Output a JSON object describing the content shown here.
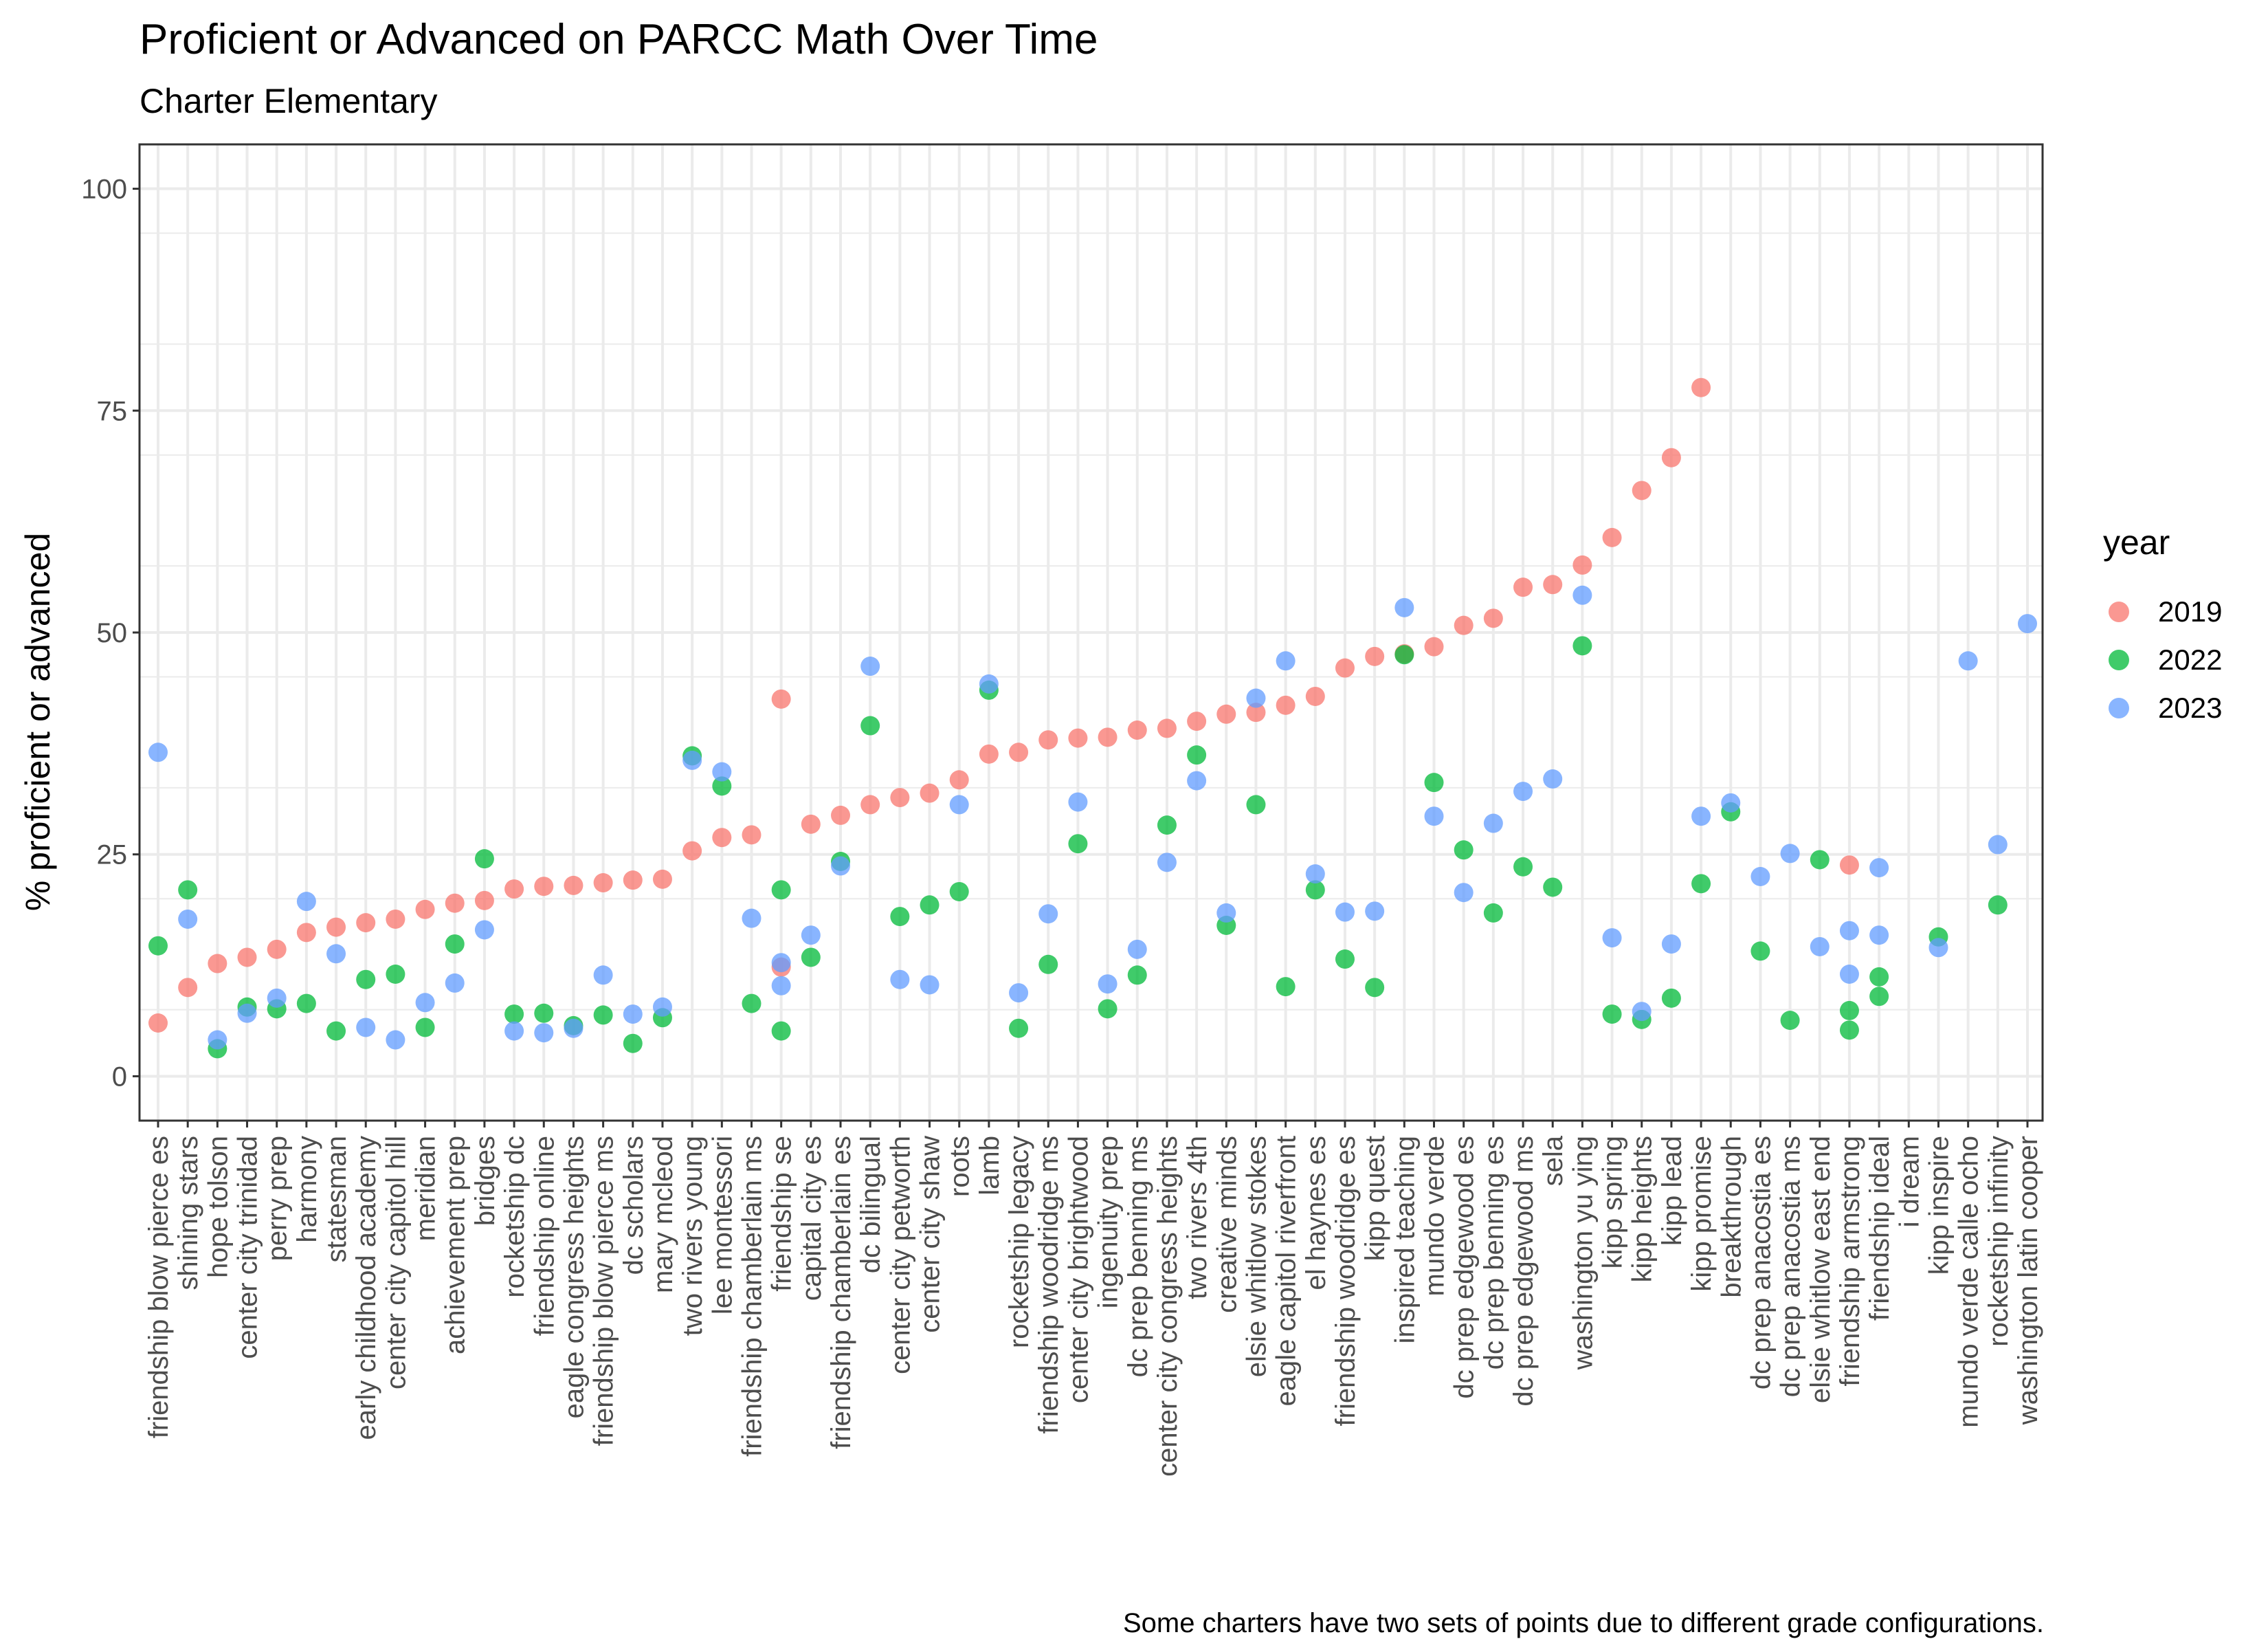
{
  "title": "Proficient or Advanced on PARCC Math Over Time",
  "subtitle": "Charter Elementary",
  "caption": "Some charters have two sets of points due to different grade configurations.",
  "colors": {
    "2019": "#F8766D",
    "2022": "#00BA38",
    "2023": "#619CFF",
    "grid": "#EBEBEB",
    "panel_border": "#333333"
  },
  "chart_data": {
    "type": "scatter",
    "title": "Proficient or Advanced on PARCC Math Over Time",
    "subtitle": "Charter Elementary",
    "xlabel": "",
    "ylabel": "% proficient or advanced",
    "ylim": [
      -5,
      105
    ],
    "yticks": [
      0,
      25,
      50,
      75,
      100
    ],
    "grid": true,
    "legend": {
      "title": "year",
      "position": "right",
      "entries": [
        "2019",
        "2022",
        "2023"
      ]
    },
    "categories": [
      "friendship blow pierce es",
      "shining stars",
      "hope tolson",
      "center city trinidad",
      "perry prep",
      "harmony",
      "statesman",
      "early childhood academy",
      "center city capitol hill",
      "meridian",
      "achievement prep",
      "bridges",
      "rocketship dc",
      "friendship online",
      "eagle congress heights",
      "friendship blow pierce ms",
      "dc scholars",
      "mary mcleod",
      "two rivers young",
      "lee montessori",
      "friendship chamberlain ms",
      "friendship se",
      "capital city es",
      "friendship chamberlain es",
      "dc bilingual",
      "center city petworth",
      "center city shaw",
      "roots",
      "lamb",
      "rocketship legacy",
      "friendship woodridge ms",
      "center city brightwood",
      "ingenuity prep",
      "dc prep benning ms",
      "center city congress heights",
      "two rivers 4th",
      "creative minds",
      "elsie whitlow stokes",
      "eagle capitol riverfront",
      "el haynes es",
      "friendship woodridge es",
      "kipp quest",
      "inspired teaching",
      "mundo verde",
      "dc prep edgewood es",
      "dc prep benning es",
      "dc prep edgewood ms",
      "sela",
      "washington yu ying",
      "kipp spring",
      "kipp heights",
      "kipp lead",
      "kipp promise",
      "breakthrough",
      "dc prep anacostia es",
      "dc prep anacostia ms",
      "elsie whitlow east end",
      "friendship armstrong",
      "friendship ideal",
      "i dream",
      "kipp inspire",
      "mundo verde calle ocho",
      "rocketship infinity",
      "washington latin cooper"
    ],
    "series": [
      {
        "name": "2019",
        "points": [
          [
            "friendship blow pierce es",
            6
          ],
          [
            "shining stars",
            10
          ],
          [
            "hope tolson",
            12.7
          ],
          [
            "center city trinidad",
            13.4
          ],
          [
            "perry prep",
            14.3
          ],
          [
            "harmony",
            16.2
          ],
          [
            "statesman",
            16.8
          ],
          [
            "early childhood academy",
            17.3
          ],
          [
            "center city capitol hill",
            17.7
          ],
          [
            "meridian",
            18.8
          ],
          [
            "achievement prep",
            19.5
          ],
          [
            "bridges",
            19.8
          ],
          [
            "rocketship dc",
            21.1
          ],
          [
            "friendship online",
            21.4
          ],
          [
            "eagle congress heights",
            21.5
          ],
          [
            "friendship blow pierce ms",
            21.8
          ],
          [
            "dc scholars",
            22.1
          ],
          [
            "mary mcleod",
            22.2
          ],
          [
            "two rivers young",
            25.4
          ],
          [
            "lee montessori",
            26.9
          ],
          [
            "friendship chamberlain ms",
            27.2
          ],
          [
            "friendship se",
            42.5
          ],
          [
            "friendship se",
            12.3
          ],
          [
            "capital city es",
            28.4
          ],
          [
            "friendship chamberlain es",
            29.4
          ],
          [
            "dc bilingual",
            30.6
          ],
          [
            "center city petworth",
            31.4
          ],
          [
            "center city shaw",
            31.9
          ],
          [
            "roots",
            33.4
          ],
          [
            "lamb",
            36.3
          ],
          [
            "rocketship legacy",
            36.5
          ],
          [
            "friendship woodridge ms",
            37.9
          ],
          [
            "center city brightwood",
            38.1
          ],
          [
            "ingenuity prep",
            38.2
          ],
          [
            "dc prep benning ms",
            39
          ],
          [
            "center city congress heights",
            39.2
          ],
          [
            "two rivers 4th",
            40
          ],
          [
            "creative minds",
            40.8
          ],
          [
            "elsie whitlow stokes",
            41
          ],
          [
            "eagle capitol riverfront",
            41.8
          ],
          [
            "el haynes es",
            42.8
          ],
          [
            "friendship woodridge es",
            46
          ],
          [
            "kipp quest",
            47.3
          ],
          [
            "inspired teaching",
            47.6
          ],
          [
            "mundo verde",
            48.4
          ],
          [
            "dc prep edgewood es",
            50.8
          ],
          [
            "dc prep benning es",
            51.6
          ],
          [
            "dc prep edgewood ms",
            55.1
          ],
          [
            "sela",
            55.4
          ],
          [
            "washington yu ying",
            57.6
          ],
          [
            "kipp spring",
            60.7
          ],
          [
            "kipp heights",
            66
          ],
          [
            "kipp lead",
            69.7
          ],
          [
            "kipp promise",
            77.6
          ],
          [
            "friendship armstrong",
            23.8
          ]
        ]
      },
      {
        "name": "2022",
        "points": [
          [
            "friendship blow pierce es",
            14.7
          ],
          [
            "shining stars",
            21
          ],
          [
            "hope tolson",
            3.1
          ],
          [
            "center city trinidad",
            7.8
          ],
          [
            "perry prep",
            7.6
          ],
          [
            "harmony",
            8.2
          ],
          [
            "statesman",
            5.1
          ],
          [
            "early childhood academy",
            10.9
          ],
          [
            "center city capitol hill",
            11.5
          ],
          [
            "meridian",
            5.5
          ],
          [
            "achievement prep",
            14.9
          ],
          [
            "bridges",
            24.5
          ],
          [
            "rocketship dc",
            7
          ],
          [
            "friendship online",
            7.1
          ],
          [
            "eagle congress heights",
            5.7
          ],
          [
            "friendship blow pierce ms",
            6.9
          ],
          [
            "dc scholars",
            3.7
          ],
          [
            "mary mcleod",
            6.6
          ],
          [
            "two rivers young",
            36.1
          ],
          [
            "lee montessori",
            32.7
          ],
          [
            "friendship chamberlain ms",
            8.2
          ],
          [
            "friendship se",
            21
          ],
          [
            "friendship se",
            5.1
          ],
          [
            "capital city es",
            13.4
          ],
          [
            "friendship chamberlain es",
            24.2
          ],
          [
            "dc bilingual",
            39.5
          ],
          [
            "center city petworth",
            18
          ],
          [
            "center city shaw",
            19.3
          ],
          [
            "roots",
            20.8
          ],
          [
            "lamb",
            43.5
          ],
          [
            "rocketship legacy",
            5.4
          ],
          [
            "friendship woodridge ms",
            12.6
          ],
          [
            "center city brightwood",
            26.2
          ],
          [
            "ingenuity prep",
            7.6
          ],
          [
            "dc prep benning ms",
            11.4
          ],
          [
            "center city congress heights",
            28.3
          ],
          [
            "two rivers 4th",
            36.2
          ],
          [
            "creative minds",
            17
          ],
          [
            "elsie whitlow stokes",
            30.6
          ],
          [
            "eagle capitol riverfront",
            10.1
          ],
          [
            "el haynes es",
            21
          ],
          [
            "friendship woodridge es",
            13.2
          ],
          [
            "kipp quest",
            10
          ],
          [
            "inspired teaching",
            47.5
          ],
          [
            "mundo verde",
            33.1
          ],
          [
            "dc prep edgewood es",
            25.5
          ],
          [
            "dc prep benning es",
            18.4
          ],
          [
            "dc prep edgewood ms",
            23.6
          ],
          [
            "sela",
            21.3
          ],
          [
            "washington yu ying",
            48.5
          ],
          [
            "kipp spring",
            7
          ],
          [
            "kipp heights",
            6.4
          ],
          [
            "kipp lead",
            8.8
          ],
          [
            "kipp promise",
            21.7
          ],
          [
            "breakthrough",
            29.8
          ],
          [
            "dc prep anacostia es",
            14.1
          ],
          [
            "dc prep anacostia ms",
            6.3
          ],
          [
            "elsie whitlow east end",
            24.4
          ],
          [
            "friendship armstrong",
            7.4
          ],
          [
            "friendship armstrong",
            5.2
          ],
          [
            "friendship ideal",
            11.2
          ],
          [
            "friendship ideal",
            9
          ],
          [
            "kipp inspire",
            15.7
          ],
          [
            "rocketship infinity",
            19.3
          ]
        ]
      },
      {
        "name": "2023",
        "points": [
          [
            "friendship blow pierce es",
            36.5
          ],
          [
            "shining stars",
            17.7
          ],
          [
            "hope tolson",
            4.1
          ],
          [
            "center city trinidad",
            7.1
          ],
          [
            "perry prep",
            8.8
          ],
          [
            "harmony",
            19.7
          ],
          [
            "statesman",
            13.8
          ],
          [
            "early childhood academy",
            5.5
          ],
          [
            "center city capitol hill",
            4.1
          ],
          [
            "meridian",
            8.3
          ],
          [
            "achievement prep",
            10.5
          ],
          [
            "bridges",
            16.5
          ],
          [
            "rocketship dc",
            5.1
          ],
          [
            "friendship online",
            4.9
          ],
          [
            "eagle congress heights",
            5.4
          ],
          [
            "friendship blow pierce ms",
            11.4
          ],
          [
            "dc scholars",
            7
          ],
          [
            "mary mcleod",
            7.8
          ],
          [
            "two rivers young",
            35.6
          ],
          [
            "lee montessori",
            34.3
          ],
          [
            "friendship chamberlain ms",
            17.8
          ],
          [
            "friendship se",
            12.8
          ],
          [
            "friendship se",
            10.2
          ],
          [
            "capital city es",
            15.9
          ],
          [
            "friendship chamberlain es",
            23.7
          ],
          [
            "dc bilingual",
            46.2
          ],
          [
            "center city petworth",
            10.9
          ],
          [
            "center city shaw",
            10.3
          ],
          [
            "roots",
            30.6
          ],
          [
            "lamb",
            44.2
          ],
          [
            "rocketship legacy",
            9.4
          ],
          [
            "friendship woodridge ms",
            18.3
          ],
          [
            "center city brightwood",
            30.9
          ],
          [
            "ingenuity prep",
            10.4
          ],
          [
            "dc prep benning ms",
            14.3
          ],
          [
            "center city congress heights",
            24.1
          ],
          [
            "two rivers 4th",
            33.3
          ],
          [
            "creative minds",
            18.4
          ],
          [
            "elsie whitlow stokes",
            42.6
          ],
          [
            "eagle capitol riverfront",
            46.8
          ],
          [
            "el haynes es",
            22.8
          ],
          [
            "friendship woodridge es",
            18.5
          ],
          [
            "kipp quest",
            18.6
          ],
          [
            "inspired teaching",
            52.8
          ],
          [
            "mundo verde",
            29.3
          ],
          [
            "dc prep edgewood es",
            20.7
          ],
          [
            "dc prep benning es",
            28.5
          ],
          [
            "dc prep edgewood ms",
            32.1
          ],
          [
            "sela",
            33.5
          ],
          [
            "washington yu ying",
            54.2
          ],
          [
            "kipp spring",
            15.6
          ],
          [
            "kipp heights",
            7.3
          ],
          [
            "kipp lead",
            14.9
          ],
          [
            "kipp promise",
            29.3
          ],
          [
            "breakthrough",
            30.8
          ],
          [
            "dc prep anacostia es",
            22.5
          ],
          [
            "dc prep anacostia ms",
            25.1
          ],
          [
            "elsie whitlow east end",
            14.6
          ],
          [
            "friendship armstrong",
            16.4
          ],
          [
            "friendship armstrong",
            11.5
          ],
          [
            "friendship ideal",
            23.5
          ],
          [
            "friendship ideal",
            15.9
          ],
          [
            "kipp inspire",
            14.5
          ],
          [
            "mundo verde calle ocho",
            46.8
          ],
          [
            "rocketship infinity",
            26.1
          ],
          [
            "washington latin cooper",
            51
          ]
        ]
      }
    ]
  }
}
